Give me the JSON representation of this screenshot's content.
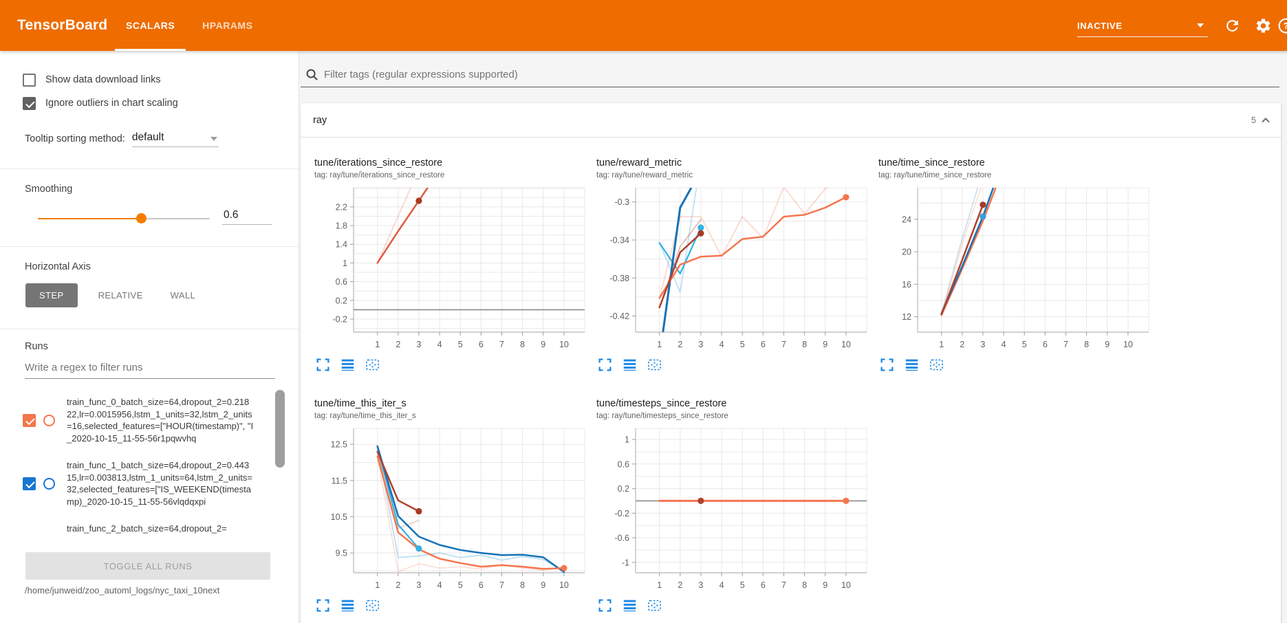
{
  "colors": {
    "header_bg": "#ef6c00",
    "toolbar_icon": "#1e88e5",
    "slider_accent": "#f57c00",
    "run_orange": "#f4764e",
    "run_blue": "#1976d2"
  },
  "header": {
    "title": "TensorBoard",
    "tabs": [
      {
        "label": "SCALARS",
        "active": true
      },
      {
        "label": "HPARAMS",
        "active": false
      }
    ],
    "status_value": "INACTIVE"
  },
  "sidebar": {
    "checkboxes": [
      {
        "label": "Show data download links",
        "checked": false
      },
      {
        "label": "Ignore outliers in chart scaling",
        "checked": true
      }
    ],
    "tooltip_sorting": {
      "label": "Tooltip sorting method:",
      "value": "default"
    },
    "smoothing": {
      "label": "Smoothing",
      "value": "0.6",
      "percent": 60
    },
    "horizontal_axis": {
      "label": "Horizontal Axis",
      "options": [
        {
          "label": "STEP",
          "selected": true
        },
        {
          "label": "RELATIVE",
          "selected": false
        },
        {
          "label": "WALL",
          "selected": false
        }
      ]
    },
    "runs": {
      "label": "Runs",
      "filter_placeholder": "Write a regex to filter runs",
      "items": [
        {
          "name": "train_func_0_batch_size=64,dropout_2=0.21822,lr=0.0015956,lstm_1_units=32,lstm_2_units=16,selected_features=[\"HOUR(timestamp)\", \"I_2020-10-15_11-55-56r1pqwvhq",
          "checked": true,
          "color": "#f4764e",
          "partial": false
        },
        {
          "name": "train_func_1_batch_size=64,dropout_2=0.44315,lr=0.003813,lstm_1_units=64,lstm_2_units=32,selected_features=[\"IS_WEEKEND(timestamp)_2020-10-15_11-55-56vlqdqxpi",
          "checked": true,
          "color": "#1976d2",
          "partial": false
        },
        {
          "name": "train_func_2_batch_size=64,dropout_2=",
          "checked": true,
          "color": "#9e9e9e",
          "partial": true
        }
      ],
      "toggle_button_label": "TOGGLE ALL RUNS",
      "log_path": "/home/junweid/zoo_automl_logs/nyc_taxi_10next"
    }
  },
  "main": {
    "filter_placeholder": "Filter tags (regular expressions supported)",
    "section": {
      "name": "ray",
      "count": "5"
    }
  },
  "chart_data": [
    {
      "type": "line",
      "title": "tune/iterations_since_restore",
      "tag": "tag: ray/tune/iterations_since_restore",
      "xlabel": "",
      "ylabel": "",
      "xticks": [
        1,
        2,
        3,
        4,
        5,
        6,
        7,
        8,
        9,
        10
      ],
      "xlim": [
        -0.15,
        11.0
      ],
      "yticks": {
        "values": [
          -0.2,
          0.2,
          0.6,
          1,
          1.4,
          1.8,
          2.2
        ],
        "labels": [
          "-0.2",
          "0.2",
          "0.6",
          "1",
          "1.4",
          "1.8",
          "2.2"
        ]
      },
      "ylim": [
        -0.48,
        2.61
      ],
      "zero_line": 0,
      "series": [
        {
          "name": "run-orange-raw",
          "color": "#e05b40",
          "opacity": 0.22,
          "width": 2,
          "points": [
            [
              1,
              1
            ],
            [
              2.61,
              2.61
            ]
          ]
        },
        {
          "name": "run-orange-smoothed",
          "color": "#e05b40",
          "opacity": 1,
          "width": 2.5,
          "points": [
            [
              1,
              1
            ],
            [
              2,
              1.68
            ],
            [
              3,
              2.33
            ],
            [
              3.42,
              2.61
            ]
          ]
        }
      ],
      "dots": [
        {
          "x": 3,
          "y": 2.33,
          "color": "#a83a24"
        }
      ]
    },
    {
      "type": "line",
      "title": "tune/reward_metric",
      "tag": "tag: ray/tune/reward_metric",
      "xlabel": "",
      "ylabel": "",
      "xticks": [
        1,
        2,
        3,
        4,
        5,
        6,
        7,
        8,
        9,
        10
      ],
      "xlim": [
        -0.15,
        11.0
      ],
      "yticks": {
        "values": [
          -0.42,
          -0.38,
          -0.34,
          -0.3
        ],
        "labels": [
          "-0.42",
          "-0.38",
          "-0.34",
          "-0.3"
        ]
      },
      "ylim": [
        -0.437,
        -0.285
      ],
      "series": [
        {
          "name": "run-orange-raw",
          "color": "#f4764e",
          "opacity": 0.28,
          "width": 1.8,
          "points": [
            [
              1,
              -0.401
            ],
            [
              2,
              -0.3155
            ],
            [
              3,
              -0.3155
            ],
            [
              4,
              -0.3575
            ],
            [
              5,
              -0.3155
            ],
            [
              6,
              -0.338
            ],
            [
              7,
              -0.284
            ],
            [
              8,
              -0.3125
            ],
            [
              9,
              -0.286
            ],
            [
              10,
              -0.2765
            ]
          ]
        },
        {
          "name": "run-lightblue-raw",
          "color": "#7fc4ea",
          "opacity": 0.5,
          "width": 1.8,
          "points": [
            [
              1,
              -0.343
            ],
            [
              2,
              -0.395
            ],
            [
              2.78,
              -0.2856
            ]
          ]
        },
        {
          "name": "run-darkred-raw",
          "color": "#b0402c",
          "opacity": 0.35,
          "width": 1.8,
          "points": [
            [
              1,
              -0.411
            ],
            [
              2,
              -0.347
            ],
            [
              3,
              -0.3185
            ]
          ]
        },
        {
          "name": "run-lightblue-smoothed",
          "color": "#33b1e4",
          "opacity": 1,
          "width": 2.2,
          "points": [
            [
              1,
              -0.343
            ],
            [
              2,
              -0.3755
            ],
            [
              3,
              -0.327
            ]
          ]
        },
        {
          "name": "run-blue-smoothed",
          "color": "#1572b6",
          "opacity": 1,
          "width": 3,
          "points": [
            [
              1.17,
              -0.437
            ],
            [
              2,
              -0.306
            ],
            [
              2.52,
              -0.2856
            ]
          ]
        },
        {
          "name": "run-orange-smoothed",
          "color": "#f4764e",
          "opacity": 1,
          "width": 2.5,
          "points": [
            [
              1,
              -0.401
            ],
            [
              2,
              -0.366
            ],
            [
              3,
              -0.3575
            ],
            [
              4,
              -0.3565
            ],
            [
              5,
              -0.339
            ],
            [
              6,
              -0.3365
            ],
            [
              7,
              -0.3155
            ],
            [
              8,
              -0.3135
            ],
            [
              9,
              -0.306
            ],
            [
              10,
              -0.295
            ]
          ]
        },
        {
          "name": "run-darkred-smoothed",
          "color": "#b0402c",
          "opacity": 1,
          "width": 2.5,
          "points": [
            [
              1,
              -0.411
            ],
            [
              2,
              -0.353
            ],
            [
              3,
              -0.333
            ]
          ]
        }
      ],
      "dots": [
        {
          "x": 10,
          "y": -0.295,
          "color": "#f4764e"
        },
        {
          "x": 3,
          "y": -0.327,
          "color": "#33b1e4"
        },
        {
          "x": 3,
          "y": -0.333,
          "color": "#a83a24"
        }
      ]
    },
    {
      "type": "line",
      "title": "tune/time_since_restore",
      "tag": "tag: ray/tune/time_since_restore",
      "xlabel": "",
      "ylabel": "",
      "xticks": [
        1,
        2,
        3,
        4,
        5,
        6,
        7,
        8,
        9,
        10
      ],
      "xlim": [
        -0.15,
        11.0
      ],
      "yticks": {
        "values": [
          12,
          16,
          20,
          24
        ],
        "labels": [
          "12",
          "16",
          "20",
          "24"
        ]
      },
      "ylim": [
        10.1,
        27.9
      ],
      "series": [
        {
          "name": "run-blue-raw",
          "color": "#1572b6",
          "opacity": 0.2,
          "width": 2,
          "points": [
            [
              1,
              12.4
            ],
            [
              2,
              21.6
            ],
            [
              2.75,
              27.9
            ]
          ]
        },
        {
          "name": "run-orange-raw",
          "color": "#f4764e",
          "opacity": 0.2,
          "width": 2,
          "points": [
            [
              1,
              12.3
            ],
            [
              2,
              20.9
            ],
            [
              2.9,
              27.9
            ]
          ]
        },
        {
          "name": "run-orange-smoothed",
          "color": "#f4764e",
          "opacity": 1,
          "width": 2.5,
          "points": [
            [
              1,
              12.2
            ],
            [
              2,
              17.9
            ],
            [
              3,
              23.8
            ],
            [
              3.62,
              27.9
            ]
          ]
        },
        {
          "name": "run-blue-smoothed",
          "color": "#1572b6",
          "opacity": 1,
          "width": 2.5,
          "points": [
            [
              1,
              12.4
            ],
            [
              2,
              18.2
            ],
            [
              3,
              24.35
            ],
            [
              3.5,
              27.9
            ]
          ]
        },
        {
          "name": "run-darkred-smoothed",
          "color": "#b0402c",
          "opacity": 1,
          "width": 2.5,
          "points": [
            [
              1,
              12.3
            ],
            [
              2,
              19.0
            ],
            [
              3,
              25.8
            ]
          ]
        }
      ],
      "dots": [
        {
          "x": 3,
          "y": 25.8,
          "color": "#a83a24"
        },
        {
          "x": 3,
          "y": 24.35,
          "color": "#33a0dc"
        }
      ]
    },
    {
      "type": "line",
      "title": "tune/time_this_iter_s",
      "tag": "tag: ray/tune/time_this_iter_s",
      "xlabel": "",
      "ylabel": "",
      "xticks": [
        1,
        2,
        3,
        4,
        5,
        6,
        7,
        8,
        9,
        10
      ],
      "xlim": [
        -0.15,
        11.0
      ],
      "yticks": {
        "values": [
          9.5,
          10.5,
          11.5,
          12.5
        ],
        "labels": [
          "9.5",
          "10.5",
          "11.5",
          "12.5"
        ]
      },
      "ylim": [
        8.95,
        12.94
      ],
      "series": [
        {
          "name": "run-orange-raw",
          "color": "#f4764e",
          "opacity": 0.22,
          "width": 1.8,
          "points": [
            [
              1,
              12.17
            ],
            [
              2,
              8.98
            ],
            [
              3,
              9.2
            ],
            [
              4,
              9.08
            ],
            [
              5,
              9.12
            ],
            [
              6,
              9.05
            ],
            [
              7,
              9.18
            ],
            [
              8,
              9.08
            ],
            [
              9,
              9.02
            ],
            [
              10,
              9.1
            ]
          ]
        },
        {
          "name": "run-lightblue-raw",
          "color": "#7fc4ea",
          "opacity": 0.55,
          "width": 1.8,
          "points": [
            [
              1,
              12.45
            ],
            [
              2,
              9.37
            ],
            [
              3,
              9.42
            ],
            [
              4,
              9.5
            ],
            [
              5,
              9.37
            ],
            [
              6,
              9.44
            ],
            [
              7,
              9.3
            ],
            [
              8,
              9.4
            ],
            [
              9,
              9.32
            ],
            [
              10,
              8.97
            ]
          ]
        },
        {
          "name": "run-darkred-raw",
          "color": "#b0402c",
          "opacity": 0.25,
          "width": 1.8,
          "points": [
            [
              1,
              12.3
            ],
            [
              2,
              10.18
            ],
            [
              3,
              10.4
            ]
          ]
        },
        {
          "name": "run-lightblue-smoothed",
          "color": "#33b1e4",
          "opacity": 1,
          "width": 2.2,
          "points": [
            [
              1,
              12.42
            ],
            [
              2,
              10.28
            ],
            [
              3,
              9.62
            ]
          ]
        },
        {
          "name": "run-blue-smoothed",
          "color": "#1572b6",
          "opacity": 1,
          "width": 2.5,
          "points": [
            [
              1,
              12.45
            ],
            [
              2,
              10.52
            ],
            [
              3,
              9.95
            ],
            [
              4,
              9.72
            ],
            [
              5,
              9.58
            ],
            [
              6,
              9.5
            ],
            [
              7,
              9.44
            ],
            [
              8,
              9.45
            ],
            [
              9,
              9.38
            ],
            [
              10,
              8.97
            ]
          ]
        },
        {
          "name": "run-orange-smoothed",
          "color": "#f4764e",
          "opacity": 1,
          "width": 2.5,
          "points": [
            [
              1,
              12.17
            ],
            [
              2,
              10.07
            ],
            [
              3,
              9.6
            ],
            [
              4,
              9.34
            ],
            [
              5,
              9.22
            ],
            [
              6,
              9.12
            ],
            [
              7,
              9.16
            ],
            [
              8,
              9.12
            ],
            [
              9,
              9.06
            ],
            [
              10,
              9.08
            ]
          ]
        },
        {
          "name": "run-darkred-smoothed",
          "color": "#b0402c",
          "opacity": 1,
          "width": 2.5,
          "points": [
            [
              1,
              12.3
            ],
            [
              2,
              10.95
            ],
            [
              3,
              10.65
            ]
          ]
        }
      ],
      "dots": [
        {
          "x": 3,
          "y": 10.65,
          "color": "#a83a24"
        },
        {
          "x": 3,
          "y": 9.62,
          "color": "#33b1e4"
        },
        {
          "x": 10,
          "y": 9.08,
          "color": "#f4764e"
        }
      ]
    },
    {
      "type": "line",
      "title": "tune/timesteps_since_restore",
      "tag": "tag: ray/tune/timesteps_since_restore",
      "xlabel": "",
      "ylabel": "",
      "xticks": [
        1,
        2,
        3,
        4,
        5,
        6,
        7,
        8,
        9,
        10
      ],
      "xlim": [
        -0.15,
        11.0
      ],
      "yticks": {
        "values": [
          -1,
          -0.6,
          -0.2,
          0.2,
          0.6,
          1
        ],
        "labels": [
          "-1",
          "-0.6",
          "-0.2",
          "0.2",
          "0.6",
          "1"
        ]
      },
      "ylim": [
        -1.17,
        1.18
      ],
      "zero_line": 0,
      "series": [
        {
          "name": "run-orange-smoothed",
          "color": "#f4764e",
          "opacity": 1,
          "width": 3,
          "points": [
            [
              1,
              0
            ],
            [
              10,
              0
            ]
          ]
        }
      ],
      "dots": [
        {
          "x": 3,
          "y": 0,
          "color": "#b0402c"
        },
        {
          "x": 10,
          "y": 0,
          "color": "#f4764e"
        }
      ]
    }
  ]
}
